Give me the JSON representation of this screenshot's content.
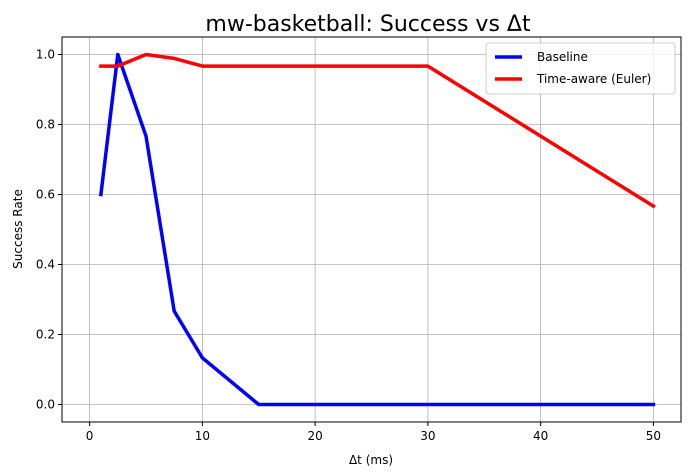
{
  "chart_data": {
    "type": "line",
    "title": "mw-basketball: Success vs Δt",
    "xlabel": "Δt (ms)",
    "ylabel": "Success Rate",
    "xlim": [
      -2.45,
      52.45
    ],
    "ylim": [
      -0.05,
      1.05
    ],
    "xticks": [
      0,
      10,
      20,
      30,
      40,
      50
    ],
    "yticks": [
      0.0,
      0.2,
      0.4,
      0.6,
      0.8,
      1.0
    ],
    "grid": true,
    "legend_position": "top-right",
    "series": [
      {
        "name": "Baseline",
        "color": "#0000ff",
        "x": [
          1,
          2.5,
          5,
          7.5,
          10,
          15,
          20,
          30,
          50
        ],
        "y": [
          0.6,
          1.0,
          0.767,
          0.267,
          0.133,
          0.0,
          0.0,
          0.0,
          0.0
        ]
      },
      {
        "name": "Time-aware (Euler)",
        "color": "#ff0000",
        "x": [
          1,
          2.5,
          5,
          7.5,
          10,
          15,
          20,
          30,
          50
        ],
        "y": [
          0.967,
          0.967,
          1.0,
          0.989,
          0.967,
          0.967,
          0.967,
          0.967,
          0.567
        ]
      }
    ]
  }
}
